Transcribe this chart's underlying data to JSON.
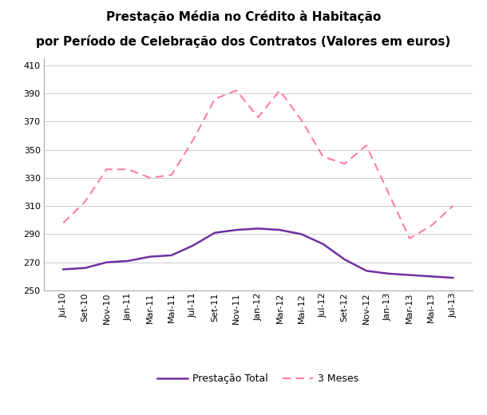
{
  "title_line1": "Prestação Média no Crédito à Habitação",
  "title_line2": "por Período de Celebração dos Contratos (Valores em euros)",
  "x_labels": [
    "Jul-10",
    "Set-10",
    "Nov-10",
    "Jan-11",
    "Mar-11",
    "Mai-11",
    "Jul-11",
    "Set-11",
    "Nov-11",
    "Jan-12",
    "Mar-12",
    "Mai-12",
    "Jul-12",
    "Set-12",
    "Nov-12",
    "Jan-13",
    "Mar-13",
    "Mai-13",
    "Jul-13"
  ],
  "prestacao_total": [
    265,
    266,
    270,
    271,
    274,
    275,
    282,
    291,
    293,
    294,
    293,
    290,
    283,
    272,
    264,
    262,
    261,
    260,
    259
  ],
  "tres_meses": [
    298,
    313,
    336,
    336,
    330,
    332,
    357,
    386,
    392,
    373,
    392,
    371,
    345,
    340,
    353,
    320,
    287,
    296,
    310
  ],
  "ylim": [
    250,
    415
  ],
  "yticks": [
    250,
    270,
    290,
    310,
    330,
    350,
    370,
    390,
    410
  ],
  "color_total": "#7030a0",
  "color_3meses": "#ff7f9f",
  "legend_label_total": "Prestação Total",
  "legend_label_3meses": "3 Meses",
  "background_color": "#ffffff",
  "title1_fontsize": 11,
  "title2_fontsize": 11,
  "tick_fontsize": 8,
  "legend_fontsize": 9
}
